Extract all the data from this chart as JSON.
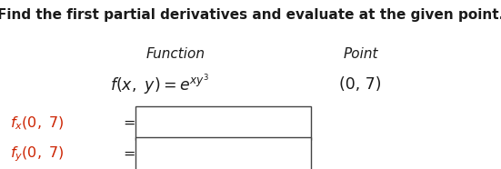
{
  "title": "Find the first partial derivatives and evaluate at the given point.",
  "col1_header": "Function",
  "col2_header": "Point",
  "point_label": "(0, 7)",
  "bg_color": "#ffffff",
  "text_color": "#1a1a1a",
  "red_color": "#cc2200",
  "box_edge_color": "#444444",
  "title_fontsize": 11.0,
  "header_fontsize": 11.0,
  "body_fontsize": 12.5,
  "label_fontsize": 11.5
}
